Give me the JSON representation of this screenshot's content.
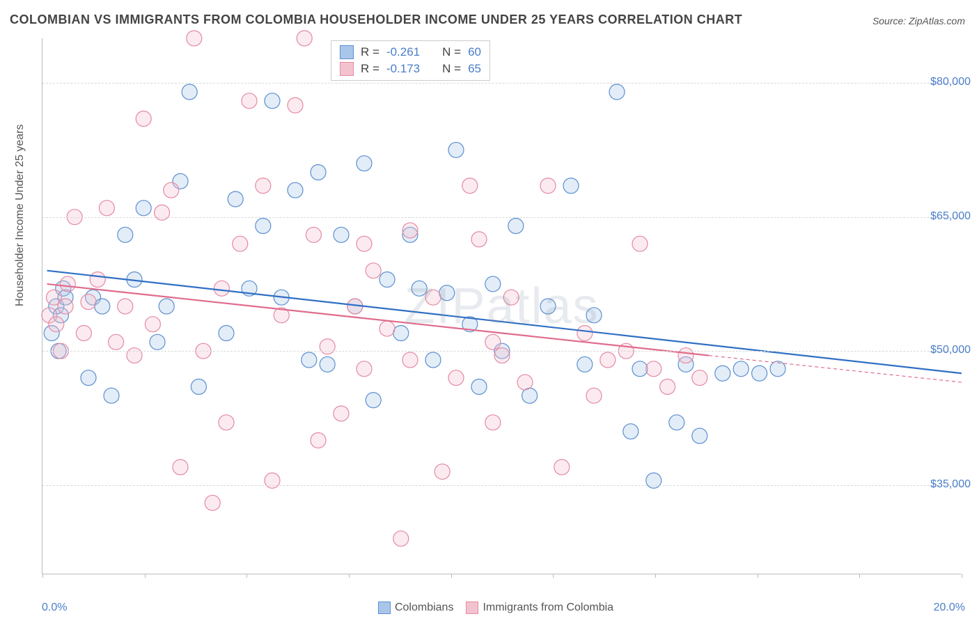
{
  "title": "COLOMBIAN VS IMMIGRANTS FROM COLOMBIA HOUSEHOLDER INCOME UNDER 25 YEARS CORRELATION CHART",
  "source": "Source: ZipAtlas.com",
  "chart": {
    "type": "scatter",
    "ylabel": "Householder Income Under 25 years",
    "ylabel_fontsize": 16,
    "title_fontsize": 18,
    "xlim": [
      0,
      20
    ],
    "ylim": [
      25000,
      85000
    ],
    "y_ticks": [
      35000,
      50000,
      65000,
      80000
    ],
    "y_tick_labels": [
      "$35,000",
      "$50,000",
      "$65,000",
      "$80,000"
    ],
    "x_tick_positions": [
      0,
      2.22,
      4.44,
      6.67,
      8.89,
      11.11,
      13.33,
      15.56,
      17.78,
      20
    ],
    "x_axis_labels": {
      "left": "0.0%",
      "right": "20.0%"
    },
    "grid_color": "#d8d8d8",
    "background_color": "#ffffff",
    "axis_color": "#bbbbbb",
    "tick_label_color": "#4a7ec9",
    "marker_radius": 11,
    "marker_stroke_width": 1.2,
    "marker_fill_opacity": 0.32,
    "line_width": 2.2,
    "watermark": "ZIPatlas",
    "watermark_color": "rgba(120,140,160,0.18)",
    "series": [
      {
        "name": "Colombians",
        "color_fill": "#a9c6ea",
        "color_stroke": "#5b8fd0",
        "line_color": "#2f6fc4",
        "r": -0.261,
        "n": 60,
        "trend": {
          "x1": 0.1,
          "y1": 59000,
          "x2": 20.0,
          "y2": 47500
        },
        "points": [
          [
            0.2,
            52000
          ],
          [
            0.3,
            55000
          ],
          [
            0.35,
            50000
          ],
          [
            0.4,
            54000
          ],
          [
            0.45,
            57000
          ],
          [
            0.5,
            56000
          ],
          [
            1.0,
            47000
          ],
          [
            1.1,
            56000
          ],
          [
            1.3,
            55000
          ],
          [
            1.5,
            45000
          ],
          [
            1.8,
            63000
          ],
          [
            2.0,
            58000
          ],
          [
            2.2,
            66000
          ],
          [
            2.5,
            51000
          ],
          [
            2.7,
            55000
          ],
          [
            3.0,
            69000
          ],
          [
            3.2,
            79000
          ],
          [
            3.4,
            46000
          ],
          [
            4.0,
            52000
          ],
          [
            4.2,
            67000
          ],
          [
            4.5,
            57000
          ],
          [
            4.8,
            64000
          ],
          [
            5.0,
            78000
          ],
          [
            5.2,
            56000
          ],
          [
            5.5,
            68000
          ],
          [
            5.8,
            49000
          ],
          [
            6.0,
            70000
          ],
          [
            6.2,
            48500
          ],
          [
            6.5,
            63000
          ],
          [
            6.8,
            55000
          ],
          [
            7.0,
            71000
          ],
          [
            7.2,
            44500
          ],
          [
            7.5,
            58000
          ],
          [
            7.8,
            52000
          ],
          [
            8.0,
            63000
          ],
          [
            8.2,
            57000
          ],
          [
            8.5,
            49000
          ],
          [
            8.8,
            56500
          ],
          [
            9.0,
            72500
          ],
          [
            9.3,
            53000
          ],
          [
            9.5,
            46000
          ],
          [
            9.8,
            57500
          ],
          [
            10.0,
            50000
          ],
          [
            10.3,
            64000
          ],
          [
            10.6,
            45000
          ],
          [
            11.0,
            55000
          ],
          [
            11.5,
            68500
          ],
          [
            11.8,
            48500
          ],
          [
            12.0,
            54000
          ],
          [
            12.5,
            79000
          ],
          [
            12.8,
            41000
          ],
          [
            13.0,
            48000
          ],
          [
            13.3,
            35500
          ],
          [
            13.8,
            42000
          ],
          [
            14.0,
            48500
          ],
          [
            14.3,
            40500
          ],
          [
            14.8,
            47500
          ],
          [
            15.2,
            48000
          ],
          [
            15.6,
            47500
          ],
          [
            16.0,
            48000
          ]
        ]
      },
      {
        "name": "Immigrants from Colombia",
        "color_fill": "#f3c2cf",
        "color_stroke": "#e48aa2",
        "line_color": "#e06b8c",
        "r": -0.173,
        "n": 65,
        "trend": {
          "x1": 0.1,
          "y1": 57500,
          "x2": 14.5,
          "y2": 49500
        },
        "trend_dash": {
          "x1": 14.5,
          "y1": 49500,
          "x2": 20.0,
          "y2": 46500
        },
        "points": [
          [
            0.15,
            54000
          ],
          [
            0.25,
            56000
          ],
          [
            0.3,
            53000
          ],
          [
            0.4,
            50000
          ],
          [
            0.5,
            55000
          ],
          [
            0.55,
            57500
          ],
          [
            0.7,
            65000
          ],
          [
            0.9,
            52000
          ],
          [
            1.0,
            55500
          ],
          [
            1.2,
            58000
          ],
          [
            1.4,
            66000
          ],
          [
            1.6,
            51000
          ],
          [
            1.8,
            55000
          ],
          [
            2.0,
            49500
          ],
          [
            2.2,
            76000
          ],
          [
            2.4,
            53000
          ],
          [
            2.6,
            65500
          ],
          [
            2.8,
            68000
          ],
          [
            3.0,
            37000
          ],
          [
            3.3,
            85000
          ],
          [
            3.5,
            50000
          ],
          [
            3.7,
            33000
          ],
          [
            3.9,
            57000
          ],
          [
            4.0,
            42000
          ],
          [
            4.3,
            62000
          ],
          [
            4.5,
            78000
          ],
          [
            4.8,
            68500
          ],
          [
            5.0,
            35500
          ],
          [
            5.2,
            54000
          ],
          [
            5.5,
            77500
          ],
          [
            5.7,
            85000
          ],
          [
            5.9,
            63000
          ],
          [
            6.2,
            50500
          ],
          [
            6.5,
            43000
          ],
          [
            6.8,
            55000
          ],
          [
            7.0,
            48000
          ],
          [
            7.2,
            59000
          ],
          [
            7.5,
            52500
          ],
          [
            7.8,
            29000
          ],
          [
            8.0,
            49000
          ],
          [
            8.2,
            82000
          ],
          [
            8.5,
            56000
          ],
          [
            8.7,
            36500
          ],
          [
            9.0,
            47000
          ],
          [
            9.3,
            68500
          ],
          [
            9.5,
            62500
          ],
          [
            9.8,
            51000
          ],
          [
            10.0,
            49500
          ],
          [
            10.5,
            46500
          ],
          [
            11.0,
            68500
          ],
          [
            11.3,
            37000
          ],
          [
            11.8,
            52000
          ],
          [
            12.0,
            45000
          ],
          [
            12.3,
            49000
          ],
          [
            12.7,
            50000
          ],
          [
            13.0,
            62000
          ],
          [
            13.3,
            48000
          ],
          [
            13.6,
            46000
          ],
          [
            14.0,
            49500
          ],
          [
            14.3,
            47000
          ],
          [
            9.8,
            42000
          ],
          [
            10.2,
            56000
          ],
          [
            6.0,
            40000
          ],
          [
            7.0,
            62000
          ],
          [
            8.0,
            63500
          ]
        ]
      }
    ],
    "legend": {
      "items": [
        "Colombians",
        "Immigrants from Colombia"
      ]
    },
    "stats_labels": {
      "r": "R =",
      "n": "N ="
    }
  }
}
